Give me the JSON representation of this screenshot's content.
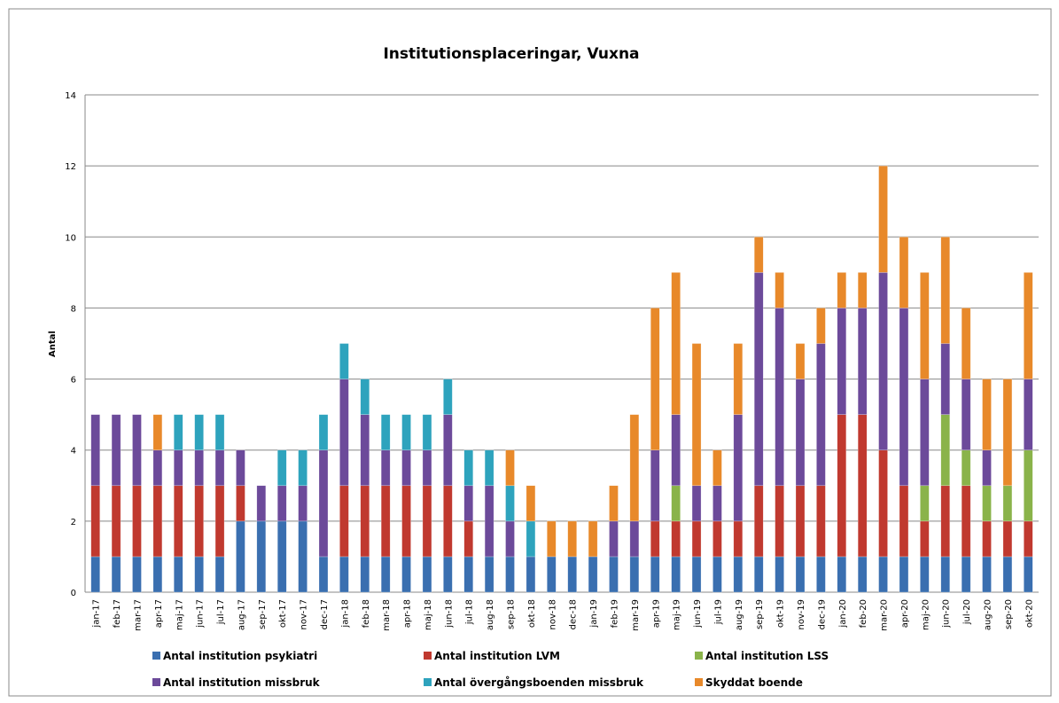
{
  "chart_data": {
    "type": "stacked-bar",
    "title": "Institutionsplaceringar, Vuxna",
    "y_label": "Antal",
    "categories": [
      "jan-17",
      "feb-17",
      "mar-17",
      "apr-17",
      "maj-17",
      "jun-17",
      "jul-17",
      "aug-17",
      "sep-17",
      "okt-17",
      "nov-17",
      "dec-17",
      "jan-18",
      "feb-18",
      "mar-18",
      "apr-18",
      "maj-18",
      "jun-18",
      "jul-18",
      "aug-18",
      "sep-18",
      "okt-18",
      "nov-18",
      "dec-18",
      "jan-19",
      "feb-19",
      "mar-19",
      "apr-19",
      "maj-19",
      "jun-19",
      "jul-19",
      "aug-19",
      "sep-19",
      "okt-19",
      "nov-19",
      "dec-19",
      "jan-20",
      "feb-20",
      "mar-20",
      "apr-20",
      "maj-20",
      "jun-20",
      "jul-20",
      "aug-20",
      "sep-20",
      "okt-20"
    ],
    "series": [
      {
        "name": "Antal institution psykiatri",
        "color": "#3a6fb0",
        "values": [
          1,
          1,
          1,
          1,
          1,
          1,
          1,
          2,
          2,
          2,
          2,
          1,
          1,
          1,
          1,
          1,
          1,
          1,
          1,
          1,
          1,
          1,
          1,
          1,
          1,
          1,
          1,
          1,
          1,
          1,
          1,
          1,
          1,
          1,
          1,
          1,
          1,
          1,
          1,
          1,
          1,
          1,
          1,
          1,
          1,
          1
        ]
      },
      {
        "name": "Antal institution LVM",
        "color": "#c0392f",
        "values": [
          2,
          2,
          2,
          2,
          2,
          2,
          2,
          1,
          0,
          0,
          0,
          0,
          2,
          2,
          2,
          2,
          2,
          2,
          1,
          0,
          0,
          0,
          0,
          0,
          0,
          0,
          0,
          1,
          1,
          1,
          1,
          1,
          2,
          2,
          2,
          2,
          4,
          4,
          3,
          2,
          1,
          2,
          2,
          1,
          1,
          1
        ]
      },
      {
        "name": "Antal institution LSS",
        "color": "#8ab34a",
        "values": [
          0,
          0,
          0,
          0,
          0,
          0,
          0,
          0,
          0,
          0,
          0,
          0,
          0,
          0,
          0,
          0,
          0,
          0,
          0,
          0,
          0,
          0,
          0,
          0,
          0,
          0,
          0,
          0,
          1,
          0,
          0,
          0,
          0,
          0,
          0,
          0,
          0,
          0,
          0,
          0,
          1,
          2,
          1,
          1,
          1,
          2
        ]
      },
      {
        "name": "Antal institution missbruk",
        "color": "#6c4a9a",
        "values": [
          2,
          2,
          2,
          1,
          1,
          1,
          1,
          1,
          1,
          1,
          1,
          3,
          3,
          2,
          1,
          1,
          1,
          2,
          1,
          2,
          1,
          0,
          0,
          0,
          0,
          1,
          1,
          2,
          2,
          1,
          1,
          3,
          6,
          5,
          3,
          4,
          3,
          3,
          5,
          5,
          3,
          2,
          2,
          1,
          0,
          2
        ]
      },
      {
        "name": "Antal övergångsboenden missbruk",
        "color": "#2ea3bd",
        "values": [
          0,
          0,
          0,
          0,
          1,
          1,
          1,
          0,
          0,
          1,
          1,
          1,
          1,
          1,
          1,
          1,
          1,
          1,
          1,
          1,
          1,
          1,
          0,
          0,
          0,
          0,
          0,
          0,
          0,
          0,
          0,
          0,
          0,
          0,
          0,
          0,
          0,
          0,
          0,
          0,
          0,
          0,
          0,
          0,
          0,
          0
        ]
      },
      {
        "name": "Skyddat boende",
        "color": "#e8892a",
        "values": [
          0,
          0,
          0,
          1,
          0,
          0,
          0,
          0,
          0,
          0,
          0,
          0,
          0,
          0,
          0,
          0,
          0,
          0,
          0,
          0,
          1,
          1,
          1,
          1,
          1,
          1,
          3,
          4,
          4,
          4,
          1,
          2,
          1,
          1,
          1,
          1,
          1,
          1,
          3,
          2,
          3,
          3,
          2,
          2,
          3,
          3
        ]
      }
    ],
    "ylim": [
      0,
      14
    ],
    "yticks": [
      0,
      2,
      4,
      6,
      8,
      10,
      12,
      14
    ],
    "grid": true
  }
}
